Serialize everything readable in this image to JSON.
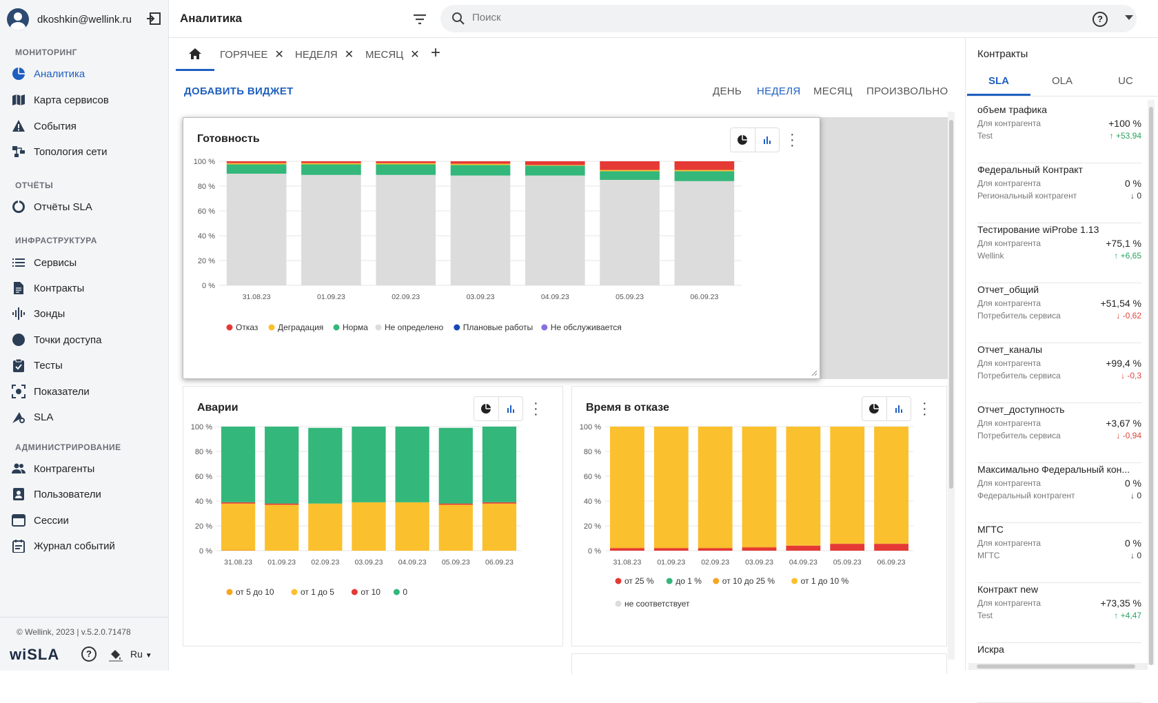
{
  "user": {
    "email": "dkoshkin@wellink.ru"
  },
  "sidebar": {
    "sections": [
      {
        "title": "МОНИТОРИНГ",
        "items": [
          {
            "label": "Аналитика",
            "icon": "pie-chart-icon",
            "active": true
          },
          {
            "label": "Карта сервисов",
            "icon": "map-icon"
          },
          {
            "label": "События",
            "icon": "warning-icon"
          },
          {
            "label": "Топология сети",
            "icon": "topology-icon"
          }
        ]
      },
      {
        "title": "ОТЧЁТЫ",
        "items": [
          {
            "label": "Отчёты SLA",
            "icon": "donut-icon"
          }
        ]
      },
      {
        "title": "ИНФРАСТРУКТУРА",
        "items": [
          {
            "label": "Сервисы",
            "icon": "list-icon"
          },
          {
            "label": "Контракты",
            "icon": "document-icon"
          },
          {
            "label": "Зонды",
            "icon": "signal-icon"
          },
          {
            "label": "Точки доступа",
            "icon": "circle-icon"
          },
          {
            "label": "Тесты",
            "icon": "clipboard-check-icon"
          },
          {
            "label": "Показатели",
            "icon": "metrics-icon"
          },
          {
            "label": "SLA",
            "icon": "sla-icon"
          }
        ]
      },
      {
        "title": "АДМИНИСТРИРОВАНИЕ",
        "items": [
          {
            "label": "Контрагенты",
            "icon": "people-icon"
          },
          {
            "label": "Пользователи",
            "icon": "user-card-icon"
          },
          {
            "label": "Сессии",
            "icon": "window-icon"
          },
          {
            "label": "Журнал событий",
            "icon": "journal-icon"
          }
        ]
      }
    ],
    "copyright": "© Wellink, 2023 | v.5.2.0.71478",
    "logo": "wiSLA",
    "lang": "Ru"
  },
  "topbar": {
    "title": "Аналитика",
    "search_placeholder": "Поиск"
  },
  "tabs": [
    {
      "label": "ГОРЯЧЕЕ"
    },
    {
      "label": "НЕДЕЛЯ"
    },
    {
      "label": "МЕСЯЦ"
    }
  ],
  "toolbar": {
    "add_widget": "ДОБАВИТЬ ВИДЖЕТ",
    "periods": [
      "ДЕНЬ",
      "НЕДЕЛЯ",
      "МЕСЯЦ",
      "ПРОИЗВОЛЬНО"
    ],
    "selected_period": "НЕДЕЛЯ"
  },
  "colors": {
    "accent": "#1f5fbf",
    "red": "#e53935",
    "yellow": "#fbc02d",
    "orange": "#f5a623",
    "green": "#34b77a",
    "grey": "#dcdcdc",
    "navy": "#1a47b8",
    "purple": "#8a6fe0"
  },
  "chart_data": [
    {
      "title": "Готовность",
      "type": "bar",
      "stacked": true,
      "categories": [
        "31.08.23",
        "01.09.23",
        "02.09.23",
        "03.09.23",
        "04.09.23",
        "05.09.23",
        "06.09.23"
      ],
      "yticks": [
        "0 %",
        "20 %",
        "40 %",
        "60 %",
        "80 %",
        "100 %"
      ],
      "ylim": [
        0,
        100
      ],
      "series": [
        {
          "name": "Не определено",
          "color": "#dcdcdc",
          "values": [
            90,
            89,
            89,
            88.5,
            88.5,
            85,
            84
          ]
        },
        {
          "name": "Норма",
          "color": "#34b77a",
          "values": [
            7.5,
            8.5,
            8.5,
            8.5,
            8,
            7,
            8
          ]
        },
        {
          "name": "Деградация",
          "color": "#fbc02d",
          "values": [
            1,
            1,
            1,
            1,
            0.5,
            1,
            1
          ]
        },
        {
          "name": "Отказ",
          "color": "#e53935",
          "values": [
            1.5,
            1.5,
            1.5,
            2,
            3,
            7,
            7
          ]
        },
        {
          "name": "Плановые работы",
          "color": "#1a47b8",
          "values": [
            0,
            0,
            0,
            0,
            0,
            0,
            0
          ]
        },
        {
          "name": "Не обслуживается",
          "color": "#8a6fe0",
          "values": [
            0,
            0,
            0,
            0,
            0,
            0,
            0
          ]
        }
      ],
      "legend": [
        "Отказ",
        "Деградация",
        "Норма",
        "Не определено",
        "Плановые работы",
        "Не обслуживается"
      ],
      "legend_colors": [
        "#e53935",
        "#fbc02d",
        "#34b77a",
        "#dcdcdc",
        "#1a47b8",
        "#8a6fe0"
      ]
    },
    {
      "title": "Аварии",
      "type": "bar",
      "stacked": true,
      "categories": [
        "31.08.23",
        "01.09.23",
        "02.09.23",
        "03.09.23",
        "04.09.23",
        "05.09.23",
        "06.09.23"
      ],
      "yticks": [
        "0 %",
        "20 %",
        "40 %",
        "60 %",
        "80 %",
        "100 %"
      ],
      "ylim": [
        0,
        100
      ],
      "series": [
        {
          "name": "от 5 до 10",
          "color": "#f5a623",
          "values": [
            1,
            0,
            0,
            0,
            0,
            0,
            0
          ]
        },
        {
          "name": "от 1 до 5",
          "color": "#fbc02d",
          "values": [
            37,
            37,
            38,
            39,
            39,
            37,
            38
          ]
        },
        {
          "name": "от 10",
          "color": "#e53935",
          "values": [
            1,
            1,
            0,
            0,
            0,
            1,
            1
          ]
        },
        {
          "name": "0",
          "color": "#34b77a",
          "values": [
            61,
            62,
            61,
            61,
            61,
            61,
            61
          ]
        }
      ],
      "legend": [
        "от 5 до 10",
        "от 1 до 5",
        "от 10",
        "0"
      ],
      "legend_colors": [
        "#f5a623",
        "#fbc02d",
        "#e53935",
        "#34b77a"
      ]
    },
    {
      "title": "Время в отказе",
      "type": "bar",
      "stacked": true,
      "categories": [
        "31.08.23",
        "01.09.23",
        "02.09.23",
        "03.09.23",
        "04.09.23",
        "05.09.23",
        "06.09.23"
      ],
      "yticks": [
        "0 %",
        "20 %",
        "40 %",
        "60 %",
        "80 %",
        "100 %"
      ],
      "ylim": [
        0,
        100
      ],
      "series": [
        {
          "name": "от 25 %",
          "color": "#e53935",
          "values": [
            2,
            2,
            2,
            2.5,
            4,
            5.5,
            5.5
          ]
        },
        {
          "name": "от 10 до 25 %",
          "color": "#f5a623",
          "values": [
            0.5,
            0.5,
            0.5,
            1,
            0.5,
            0.5,
            0.5
          ]
        },
        {
          "name": "от 1 до 10 %",
          "color": "#fbc02d",
          "values": [
            97.5,
            97.5,
            97.5,
            96.5,
            95.5,
            94,
            94
          ]
        },
        {
          "name": "до 1 %",
          "color": "#34b77a",
          "values": [
            0,
            0,
            0,
            0,
            0,
            0,
            0
          ]
        },
        {
          "name": "не соответствует",
          "color": "#dcdcdc",
          "values": [
            0,
            0,
            0,
            0,
            0,
            0,
            0
          ]
        }
      ],
      "legend": [
        "от 25 %",
        "до 1 %",
        "от 10 до 25 %",
        "от 1 до 10 %",
        "не соответствует"
      ],
      "legend_colors": [
        "#e53935",
        "#34b77a",
        "#f5a623",
        "#fbc02d",
        "#dcdcdc"
      ]
    }
  ],
  "right_panel": {
    "title": "Контракты",
    "tabs": [
      "SLA",
      "OLA",
      "UC"
    ],
    "selected_tab": "SLA",
    "contracts": [
      {
        "name": "объем трафика",
        "sub1": "Для контрагента",
        "sub2": "Test",
        "value": "+100 %",
        "delta": "↑ +53,94",
        "trend": "up"
      },
      {
        "name": "Федеральный Контракт",
        "sub1": "Для контрагента",
        "sub2": "Региональный контрагент",
        "value": "0 %",
        "delta": "↓ 0",
        "trend": "zero"
      },
      {
        "name": "Тестирование wiProbe 1.13",
        "sub1": "Для контрагента",
        "sub2": "Wellink",
        "value": "+75,1 %",
        "delta": "↑ +6,65",
        "trend": "up"
      },
      {
        "name": "Отчет_общий",
        "sub1": "Для контрагента",
        "sub2": "Потребитель сервиса",
        "value": "+51,54 %",
        "delta": "↓ -0,62",
        "trend": "down"
      },
      {
        "name": "Отчет_каналы",
        "sub1": "Для контрагента",
        "sub2": "Потребитель сервиса",
        "value": "+99,4 %",
        "delta": "↓ -0,3",
        "trend": "down"
      },
      {
        "name": "Отчет_доступность",
        "sub1": "Для контрагента",
        "sub2": "Потребитель сервиса",
        "value": "+3,67 %",
        "delta": "↓ -0,94",
        "trend": "down"
      },
      {
        "name": "Максимально Федеральный кон...",
        "sub1": "Для контрагента",
        "sub2": "Федеральный контрагент",
        "value": "0 %",
        "delta": "↓ 0",
        "trend": "zero"
      },
      {
        "name": "МГТС",
        "sub1": "Для контрагента",
        "sub2": "МГТС",
        "value": "0 %",
        "delta": "↓ 0",
        "trend": "zero"
      },
      {
        "name": "Контракт new",
        "sub1": "Для контрагента",
        "sub2": "Test",
        "value": "+73,35 %",
        "delta": "↑ +4,47",
        "trend": "up"
      },
      {
        "name": "Искра",
        "sub1": "",
        "sub2": "",
        "value": "",
        "delta": "",
        "trend": "zero"
      }
    ]
  }
}
